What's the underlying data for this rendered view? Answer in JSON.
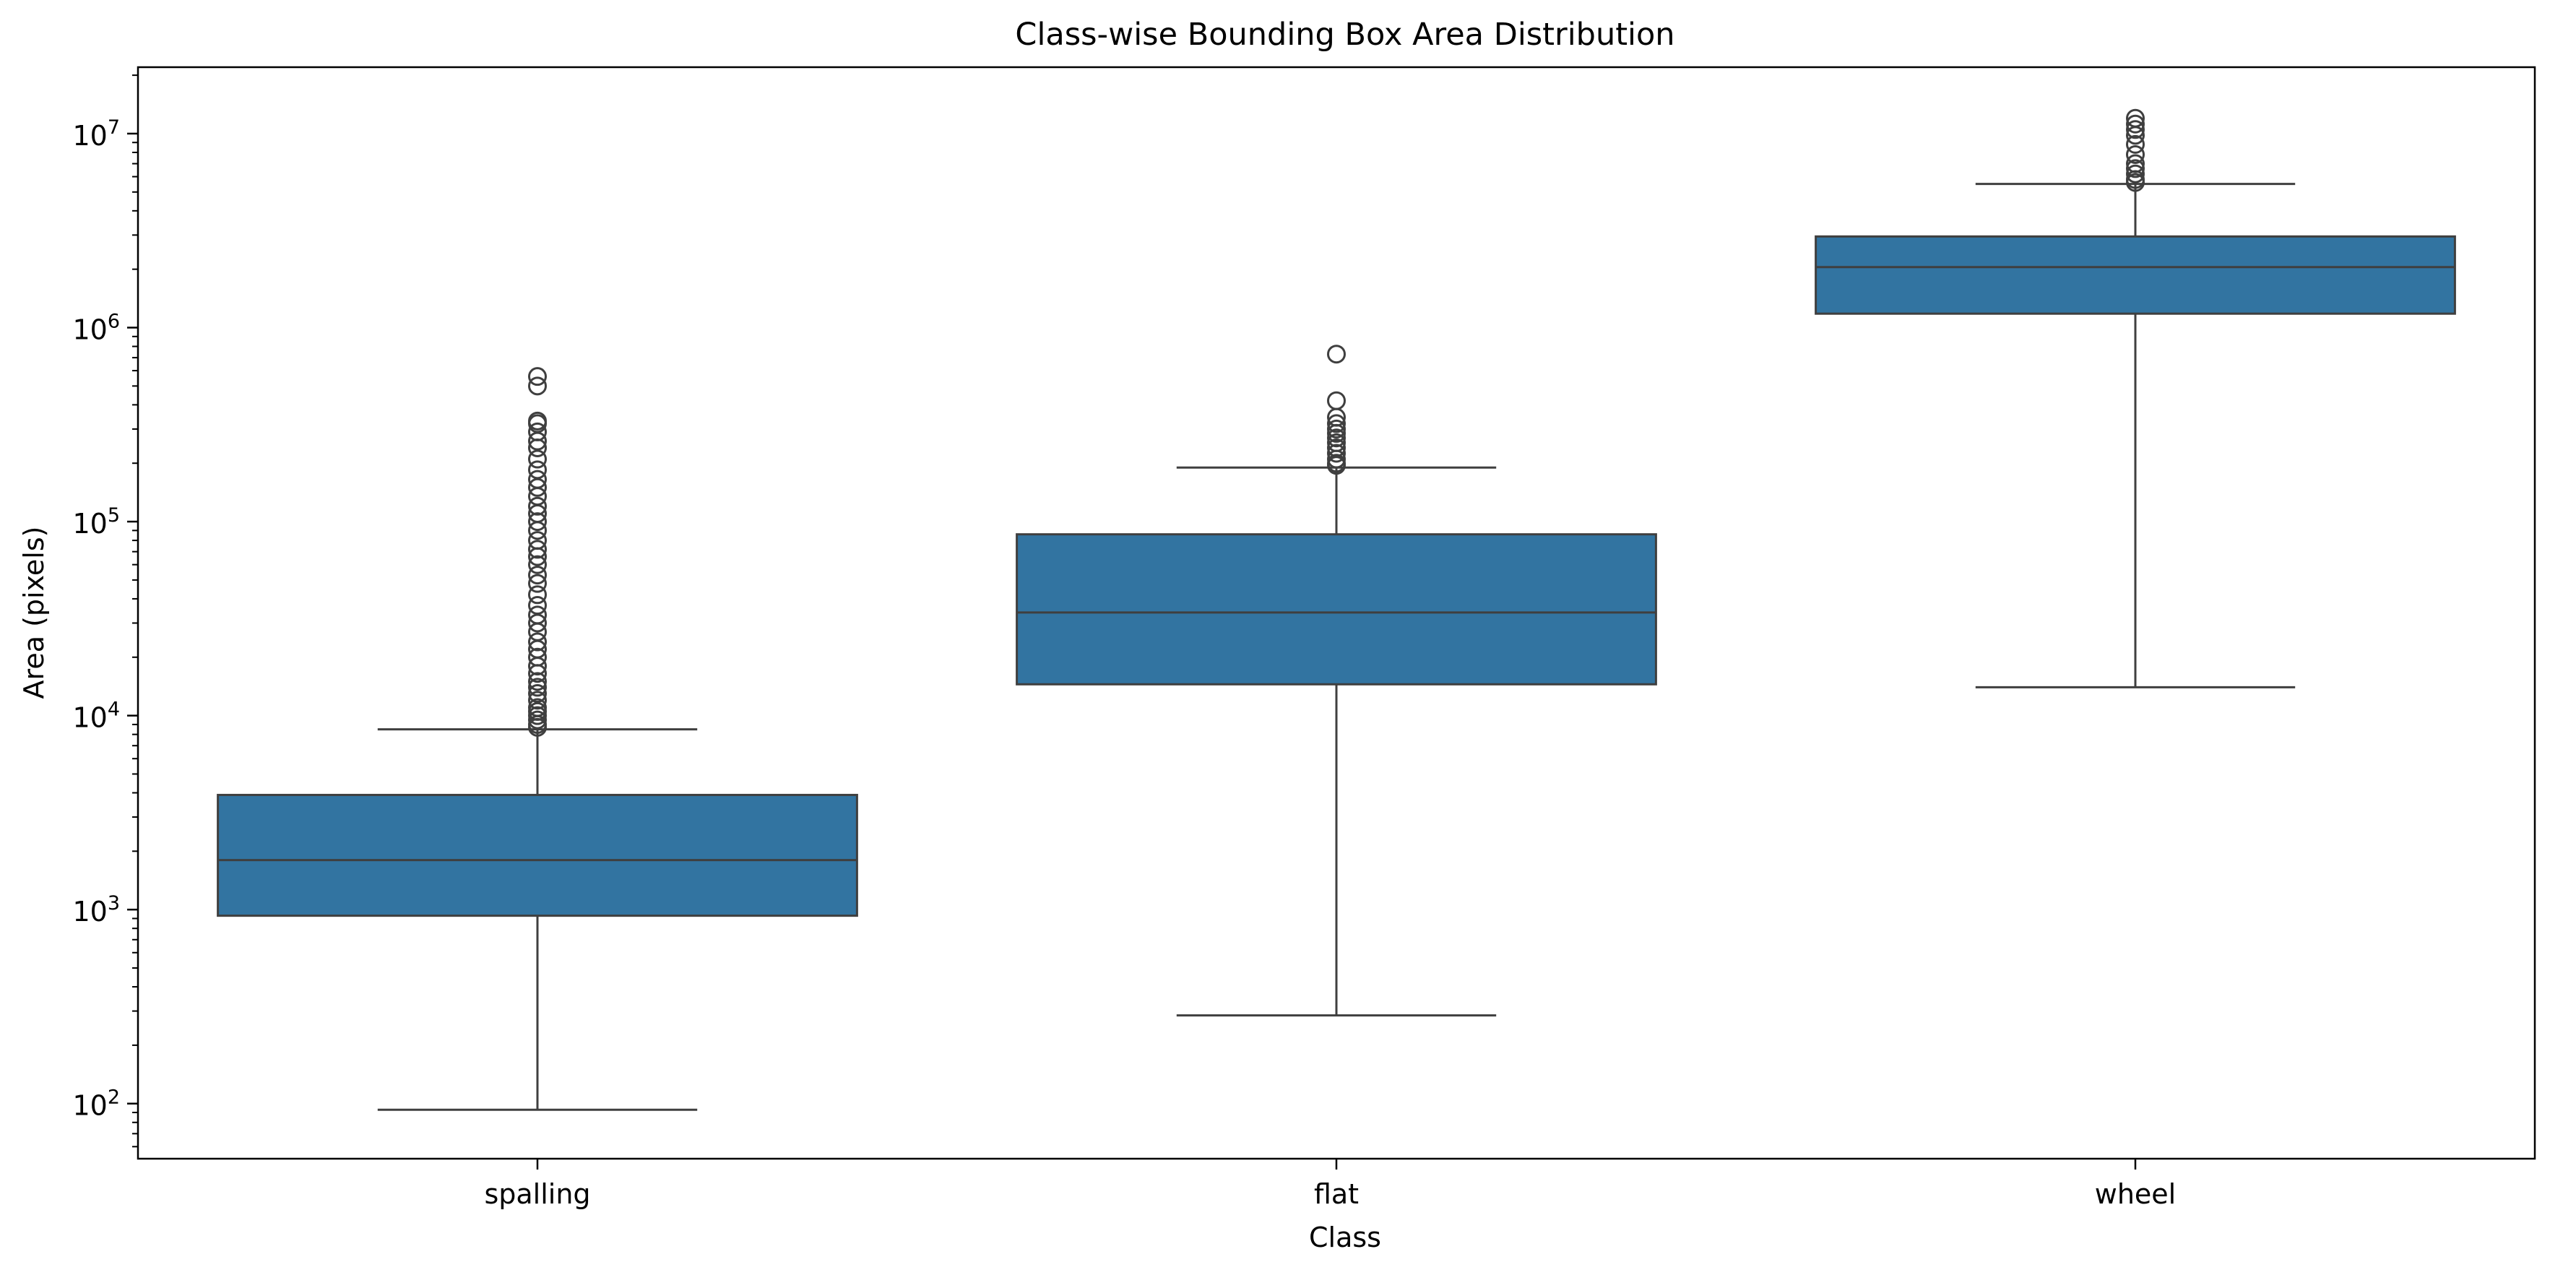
{
  "chart_data": {
    "type": "box",
    "title": "Class-wise Bounding Box Area Distribution",
    "xlabel": "Class",
    "ylabel": "Area (pixels)",
    "y_scale": "log",
    "ylim": [
      52,
      22000000
    ],
    "y_ticks": [
      {
        "value": 100,
        "base": "10",
        "exp": "2"
      },
      {
        "value": 1000,
        "base": "10",
        "exp": "3"
      },
      {
        "value": 10000,
        "base": "10",
        "exp": "4"
      },
      {
        "value": 100000,
        "base": "10",
        "exp": "5"
      },
      {
        "value": 1000000,
        "base": "10",
        "exp": "6"
      },
      {
        "value": 10000000,
        "base": "10",
        "exp": "7"
      }
    ],
    "grid": false,
    "categories": [
      "spalling",
      "flat",
      "wheel"
    ],
    "box_color": "#3274a1",
    "edge_color": "#3f3f3f",
    "boxes": [
      {
        "category": "spalling",
        "whisker_low": 93,
        "q1": 930,
        "median": 1800,
        "q3": 3900,
        "whisker_high": 8500,
        "outliers": [
          8700,
          9000,
          9500,
          10000,
          10500,
          11000,
          12000,
          13000,
          14000,
          15000,
          16500,
          18000,
          20000,
          22000,
          24000,
          27000,
          30000,
          33000,
          37000,
          42000,
          48000,
          53000,
          60000,
          66000,
          72000,
          80000,
          90000,
          100000,
          110000,
          120000,
          135000,
          150000,
          165000,
          185000,
          210000,
          240000,
          260000,
          290000,
          320000,
          330000,
          500000,
          560000
        ]
      },
      {
        "category": "flat",
        "whisker_low": 285,
        "q1": 14500,
        "median": 34000,
        "q3": 86000,
        "whisker_high": 190000,
        "outliers": [
          195000,
          200000,
          210000,
          225000,
          240000,
          255000,
          270000,
          285000,
          300000,
          320000,
          345000,
          420000,
          730000
        ]
      },
      {
        "category": "wheel",
        "whisker_low": 14000,
        "q1": 1180000,
        "median": 2050000,
        "q3": 2950000,
        "whisker_high": 5500000,
        "outliers": [
          5600000,
          5800000,
          6200000,
          6600000,
          7000000,
          7800000,
          8800000,
          9800000,
          10500000,
          11200000,
          12000000
        ]
      }
    ]
  }
}
